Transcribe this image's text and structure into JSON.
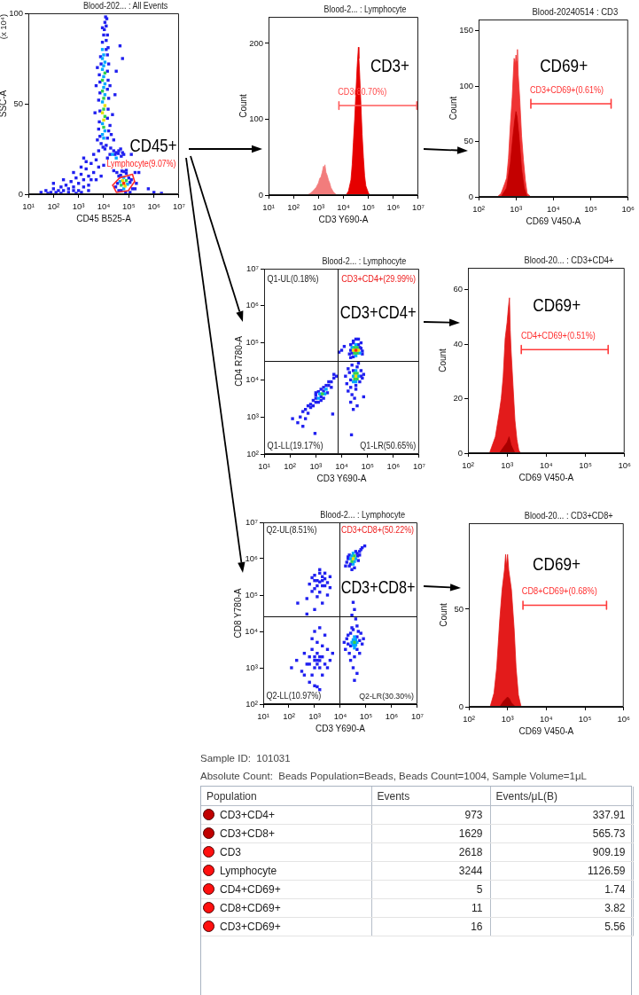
{
  "chart_data": [
    {
      "type": "scatter",
      "title": "Blood-202... : All Events",
      "xlabel": "CD45 B525-A",
      "ylabel": "SSC-A",
      "log": "x",
      "marker": "square",
      "xlim": [
        10,
        10000000
      ],
      "xticks": [
        {
          "value": 10,
          "label": "10¹"
        },
        {
          "value": 100,
          "label": "10²"
        },
        {
          "value": 1000,
          "label": "10³"
        },
        {
          "value": 10000,
          "label": "10⁴"
        },
        {
          "value": 100000,
          "label": "10⁵"
        },
        {
          "value": 1000000,
          "label": "10⁶"
        },
        {
          "value": 10000000,
          "label": "10⁷"
        }
      ],
      "ylim": [
        0,
        100
      ],
      "yticks": [
        0,
        50,
        100
      ],
      "annotations": [
        "(x 10⁴)",
        "CD45+",
        "Lymphocyte(9.07%)"
      ],
      "series": [
        {
          "color": "#2020f0",
          "x": [
            7900,
            12600,
            7100,
            14100,
            6300,
            15800,
            6700,
            14100,
            7100,
            15000,
            6300,
            15800,
            7100,
            14100,
            7100,
            15000,
            6700,
            14100,
            7900,
            15800,
            7500,
            14100,
            12600,
            15000,
            8900,
            12600,
            10000,
            14100,
            10600,
            12600,
            11200,
            13300,
            11900,
            9400,
            11200,
            17800,
            20000,
            22400,
            25100,
            56200,
            31600,
            5000,
            4500,
            5600,
            28200,
            44700,
            17800,
            5600,
            8900,
            6300,
            17800,
            19000,
            25100,
            28200,
            31600,
            37600,
            39800,
            50100,
            56200,
            63100,
            79400,
            25100,
            33500,
            47300,
            53000,
            126000,
            10000,
            14100,
            35500,
            30000,
            40000,
            40000,
            47300,
            50100,
            63100,
            75000,
            79400,
            100000,
            112000,
            112000,
            126000,
            141000,
            178000,
            178000,
            200000,
            251000,
            32,
            50,
            79,
            100,
            126,
            158,
            200,
            251,
            316,
            398,
            501,
            631,
            794,
            1000,
            1260,
            1590,
            2000,
            2510,
            3160,
            3980,
            5010,
            6310,
            398,
            631,
            1000,
            1590,
            2510,
            3160,
            1260,
            2000,
            5010,
            7900,
            630,
            250,
            1600,
            100,
            4000,
            200,
            60,
            2500,
            1300,
            800,
            1000000,
            600000,
            2000000
          ],
          "values": [
            28,
            27,
            32,
            31,
            36,
            35,
            40,
            42,
            46,
            47,
            52,
            53,
            56,
            58,
            62,
            63,
            66,
            68,
            72,
            72,
            76,
            77,
            80,
            81,
            84,
            85,
            88,
            88,
            91,
            93,
            95,
            97,
            98,
            26,
            25,
            38,
            33,
            44,
            30,
            75,
            68,
            60,
            45,
            30,
            55,
            82,
            60,
            70,
            92,
            24,
            22,
            25.5,
            24,
            22,
            23,
            22.5,
            24,
            21,
            23,
            22,
            13.2,
            13,
            12,
            25,
            12.8,
            22,
            16,
            20,
            6,
            4,
            10,
            2,
            10.5,
            2,
            12.5,
            0.8,
            11.5,
            9,
            6.5,
            1,
            8,
            3,
            3,
            12,
            6,
            12,
            1,
            2,
            1,
            3,
            1,
            2,
            4,
            2,
            5,
            3,
            7,
            4,
            9,
            6,
            11,
            8,
            14,
            10,
            17,
            12,
            19,
            15,
            1,
            2,
            2,
            4,
            5,
            8,
            15,
            18,
            8,
            10,
            12,
            8,
            20,
            6,
            22,
            0.5,
            0.5,
            2,
            1,
            0.5,
            1,
            3,
            0.5
          ]
        },
        {
          "color": "#00a8ff",
          "x": [
            10000,
            8900,
            11200,
            8900,
            8900,
            11200,
            10000,
            11200,
            10000,
            8900,
            10000,
            11200,
            8900,
            10000,
            8900,
            22400,
            31600,
            44700,
            89100,
            63100,
            63100
          ],
          "values": [
            31,
            33,
            35,
            39,
            51,
            55,
            59,
            61,
            65,
            69,
            71,
            73,
            75,
            77,
            80,
            22,
            20,
            7,
            5.5,
            3,
            9.3
          ]
        },
        {
          "color": "#30d050",
          "x": [
            10000,
            11200,
            10000,
            10000,
            8900,
            8900,
            11200,
            50100,
            79400
          ],
          "values": [
            37,
            43,
            47,
            53,
            57,
            63,
            67,
            5,
            7.5
          ]
        },
        {
          "color": "#e8e000",
          "x": [
            10000,
            8900,
            11200,
            56200,
            70800
          ],
          "values": [
            41,
            45,
            49,
            7.5,
            4.5
          ]
        },
        {
          "color": "#ff3000",
          "x": [
            63100
          ],
          "values": [
            6
          ]
        },
        {
          "type": "line",
          "marker": "none",
          "color": "#ff2a2a",
          "x": [
            23000,
            43000,
            140000,
            170000
          ],
          "values": [
            5,
            9,
            11,
            7
          ]
        },
        {
          "type": "line",
          "marker": "none",
          "color": "#ff2a2a",
          "x": [
            23000,
            32000,
            95000,
            170000
          ],
          "values": [
            5,
            1,
            2,
            7
          ]
        }
      ]
    },
    {
      "type": "area",
      "title": "Blood-2... : Lymphocyte",
      "xlabel": "CD3 Y690-A",
      "ylabel": "Count",
      "log": "x",
      "xlim": [
        10,
        10000000
      ],
      "xticks": [
        {
          "value": 10,
          "label": "10¹"
        },
        {
          "value": 100,
          "label": "10²"
        },
        {
          "value": 1000,
          "label": "10³"
        },
        {
          "value": 10000,
          "label": "10⁴"
        },
        {
          "value": 100000,
          "label": "10⁵"
        },
        {
          "value": 1000000,
          "label": "10⁶"
        },
        {
          "value": 10000000,
          "label": "10⁷"
        }
      ],
      "ylim": [
        0,
        235
      ],
      "yticks": [
        0,
        100,
        200
      ],
      "annotations": [
        "CD3+",
        "CD3(80.70%)"
      ],
      "series": [
        {
          "color": "#f27c7c",
          "x": [
            360,
            500,
            630,
            800,
            1000,
            1120,
            1260,
            1410,
            1590,
            1700,
            1820,
            2000,
            2240,
            2510,
            2820,
            3160,
            3980,
            5010,
            5620
          ],
          "values": [
            0,
            3,
            6,
            10,
            16,
            22,
            24,
            30,
            38,
            33,
            40,
            30,
            26,
            20,
            16,
            10,
            4,
            1,
            0
          ]
        },
        {
          "color": "#e60000",
          "x": [
            12600,
            15800,
            20000,
            22400,
            25100,
            28200,
            31600,
            35500,
            39800,
            41700,
            44700,
            50100,
            56200,
            63100,
            70800,
            79400,
            100000,
            112000
          ],
          "values": [
            0,
            5,
            20,
            40,
            70,
            100,
            135,
            170,
            195,
            180,
            160,
            120,
            80,
            50,
            25,
            12,
            3,
            0
          ]
        },
        {
          "type": "line",
          "color": "#ff5a5a",
          "x": [
            6600,
            6600,
            6600,
            8700000,
            8700000,
            8700000
          ],
          "values": [
            123,
            113,
            118,
            118,
            123,
            113
          ]
        }
      ]
    },
    {
      "type": "area",
      "title": "Blood-20240514 : CD3",
      "xlabel": "CD69 V450-A",
      "ylabel": "Count",
      "log": "x",
      "xlim": [
        100,
        1000000
      ],
      "xticks": [
        {
          "value": 100,
          "label": "10²"
        },
        {
          "value": 1000,
          "label": "10³"
        },
        {
          "value": 10000,
          "label": "10⁴"
        },
        {
          "value": 100000,
          "label": "10⁵"
        },
        {
          "value": 1000000,
          "label": "10⁶"
        }
      ],
      "ylim": [
        0,
        160
      ],
      "yticks": [
        0,
        50,
        100,
        150
      ],
      "annotations": [
        "CD69+",
        "CD3+CD69+(0.61%)"
      ],
      "series": [
        {
          "color": "#ef3434",
          "x": [
            316,
            398,
            501,
            562,
            631,
            708,
            794,
            891,
            955,
            1000,
            1047,
            1096,
            1148,
            1259,
            1413,
            1585,
            1778,
            1995,
            2512
          ],
          "values": [
            0,
            3,
            12,
            17,
            35,
            65,
            90,
            125,
            120,
            128,
            122,
            133,
            110,
            89,
            55,
            33,
            15,
            3,
            0
          ]
        },
        {
          "color": "#c40000",
          "x": [
            398,
            562,
            708,
            832,
            933,
            1000,
            1072,
            1202,
            1413,
            1660,
            1995
          ],
          "values": [
            0,
            8,
            30,
            55,
            70,
            77,
            72,
            55,
            25,
            8,
            0
          ]
        },
        {
          "type": "line",
          "color": "#ff3a3a",
          "x": [
            2500,
            2500,
            2500,
            350000,
            350000,
            350000
          ],
          "values": [
            88,
            80,
            84,
            84,
            88,
            80
          ]
        }
      ]
    },
    {
      "type": "scatter",
      "title": "Blood-2... : Lymphocyte",
      "xlabel": "CD3 Y690-A",
      "ylabel": "CD4 R780-A",
      "log": "xy",
      "marker": "square",
      "xlim": [
        10,
        10000000
      ],
      "xticks": [
        {
          "value": 10,
          "label": "10¹"
        },
        {
          "value": 100,
          "label": "10²"
        },
        {
          "value": 1000,
          "label": "10³"
        },
        {
          "value": 10000,
          "label": "10⁴"
        },
        {
          "value": 100000,
          "label": "10⁵"
        },
        {
          "value": 1000000,
          "label": "10⁶"
        },
        {
          "value": 10000000,
          "label": "10⁷"
        }
      ],
      "ylim": [
        100,
        10000000
      ],
      "yticks": [
        {
          "value": 100,
          "label": "10²"
        },
        {
          "value": 1000,
          "label": "10³"
        },
        {
          "value": 10000,
          "label": "10⁴"
        },
        {
          "value": 100000,
          "label": "10⁵"
        },
        {
          "value": 1000000,
          "label": "10⁶"
        },
        {
          "value": 10000000,
          "label": "10⁷"
        }
      ],
      "ref_lines": [
        {
          "axis": "x",
          "value": 7100
        },
        {
          "axis": "y",
          "value": 32000
        }
      ],
      "annotations": [
        "Q1-UL(0.18%)",
        "CD3+CD4+(29.99%)",
        "CD3+CD4+",
        "Q1-LL(19.17%)",
        "Q1-LR(50.65%)"
      ],
      "series": [
        {
          "color": "#2020f0",
          "x": [
            20000,
            22400,
            22400,
            25100,
            28200,
            28200,
            50100,
            44700,
            63100,
            56200,
            63100,
            28200,
            44700,
            22400,
            56200,
            35500,
            10000,
            12600,
            7900,
            14100,
            15800,
            17800,
            20000,
            22400,
            25100,
            22400,
            28200,
            35500,
            39800,
            56200,
            50100,
            56200,
            63100,
            70800,
            17800,
            25100,
            31600,
            22400,
            35500,
            28200,
            39800,
            44700,
            24000,
            4500,
            70800,
            250,
            316,
            398,
            501,
            631,
            794,
            1000,
            1000,
            1590,
            2000,
            2510,
            3160,
            3980,
            5010,
            6310,
            794,
            1000,
            1260,
            1590,
            2000,
            2820,
            3160,
            2000,
            1260,
            631,
            501,
            398,
            3980,
            5010,
            200,
            126,
            1590,
            930,
            316,
            1000
          ],
          "values": [
            50000,
            63000,
            89000,
            53000,
            100000,
            42000,
            75000,
            89000,
            60000,
            71000,
            50000,
            112000,
            126000,
            40000,
            100000,
            126000,
            63000,
            80000,
            56000,
            12600,
            7900,
            20000,
            15800,
            6300,
            25100,
            10000,
            17800,
            7100,
            22400,
            12600,
            8900,
            17800,
            11200,
            14100,
            5000,
            4000,
            3200,
            2500,
            5600,
            1600,
            2000,
            28200,
            330,
            1200,
            3500,
            1000,
            1400,
            1600,
            2000,
            2200,
            2800,
            3200,
            3900,
            5600,
            5000,
            7100,
            7100,
            8900,
            11200,
            12600,
            2000,
            2500,
            4800,
            3500,
            3200,
            4500,
            8900,
            6300,
            2500,
            1800,
            1260,
            900,
            6300,
            14100,
            700,
            900,
            2800,
            360,
            560,
            4500
          ]
        },
        {
          "color": "#00a8ff",
          "x": [
            35500,
            35500,
            25100,
            50100,
            28200,
            44700,
            35500,
            35500,
            28200,
            1260,
            2510,
            1410,
            2240
          ],
          "values": [
            89000,
            45000,
            75000,
            53000,
            12600,
            12600,
            17800,
            8900,
            8900,
            3200,
            5600,
            4200,
            4200
          ]
        },
        {
          "color": "#30d050",
          "x": [
            31600,
            39800,
            31600,
            39800,
            31600,
            39800,
            31600,
            39800,
            1780
          ],
          "values": [
            75000,
            75000,
            53000,
            53000,
            15000,
            15000,
            10600,
            10600,
            4200
          ]
        },
        {
          "color": "#e8e000",
          "x": [
            28200,
            44700,
            35500
          ],
          "values": [
            63000,
            63000,
            12600
          ]
        },
        {
          "color": "#ff3000",
          "x": [
            35500
          ],
          "values": [
            63000
          ]
        }
      ]
    },
    {
      "type": "area",
      "title": "Blood-20... : CD3+CD4+",
      "xlabel": "CD69 V450-A",
      "ylabel": "Count",
      "log": "x",
      "xlim": [
        100,
        1000000
      ],
      "xticks": [
        {
          "value": 100,
          "label": "10²"
        },
        {
          "value": 1000,
          "label": "10³"
        },
        {
          "value": 10000,
          "label": "10⁴"
        },
        {
          "value": 100000,
          "label": "10⁵"
        },
        {
          "value": 1000000,
          "label": "10⁶"
        }
      ],
      "ylim": [
        0,
        68
      ],
      "yticks": [
        0,
        20,
        40,
        60
      ],
      "annotations": [
        "CD69+",
        "CD4+CD69+(0.51%)"
      ],
      "series": [
        {
          "color": "#e31b1b",
          "x": [
            355,
            398,
            501,
            631,
            708,
            794,
            891,
            1000,
            1072,
            1148,
            1202,
            1259,
            1413,
            1585,
            1778,
            1995,
            2239
          ],
          "values": [
            0,
            2,
            6,
            15,
            20,
            28,
            42,
            48,
            53,
            57,
            45,
            38,
            25,
            12,
            5,
            1,
            0
          ]
        },
        {
          "color": "#a80000",
          "x": [
            631,
            794,
            1000,
            1122,
            1259,
            1585
          ],
          "values": [
            0,
            2,
            4,
            6,
            3,
            0
          ]
        },
        {
          "type": "line",
          "color": "#ff3a3a",
          "x": [
            2300,
            2300,
            2300,
            380000,
            380000,
            380000
          ],
          "values": [
            39.5,
            36.5,
            38,
            38,
            39.5,
            36.5
          ]
        }
      ]
    },
    {
      "type": "scatter",
      "title": "Blood-2... : Lymphocyte",
      "xlabel": "CD3 Y690-A",
      "ylabel": "CD8 Y780-A",
      "log": "xy",
      "marker": "square",
      "xlim": [
        10,
        10000000
      ],
      "xticks": [
        {
          "value": 10,
          "label": "10¹"
        },
        {
          "value": 100,
          "label": "10²"
        },
        {
          "value": 1000,
          "label": "10³"
        },
        {
          "value": 10000,
          "label": "10⁴"
        },
        {
          "value": 100000,
          "label": "10⁵"
        },
        {
          "value": 1000000,
          "label": "10⁶"
        },
        {
          "value": 10000000,
          "label": "10⁷"
        }
      ],
      "ylim": [
        100,
        10000000
      ],
      "yticks": [
        {
          "value": 100,
          "label": "10²"
        },
        {
          "value": 1000,
          "label": "10³"
        },
        {
          "value": 10000,
          "label": "10⁴"
        },
        {
          "value": 100000,
          "label": "10⁵"
        },
        {
          "value": 1000000,
          "label": "10⁶"
        },
        {
          "value": 10000000,
          "label": "10⁷"
        }
      ],
      "ref_lines": [
        {
          "axis": "x",
          "value": 9100
        },
        {
          "axis": "y",
          "value": 26000
        }
      ],
      "annotations": [
        "Q2-UL(8.51%)",
        "CD3+CD8+(50.22%)",
        "CD3+CD8+",
        "Q2-LL(10.97%)",
        "Q2-LR(30.30%)"
      ],
      "series": [
        {
          "color": "#2020f0",
          "x": [
            631,
            794,
            1000,
            1260,
            1580,
            2000,
            2510,
            3160,
            3980,
            1000,
            1580,
            2000,
            1260,
            2510,
            794,
            1580,
            3160,
            220,
            500,
            1260,
            2000,
            1580,
            2510,
            1000,
            3980,
            1000,
            2000,
            500,
            17800,
            20000,
            22400,
            22400,
            25100,
            39800,
            35500,
            47300,
            50100,
            56200,
            56200,
            63100,
            70800,
            89100,
            20000,
            28200,
            44700,
            16000,
            31600,
            35500,
            28200,
            39800,
            14100,
            15800,
            17800,
            20000,
            22400,
            25100,
            25100,
            31600,
            35500,
            44700,
            44700,
            50100,
            56200,
            63100,
            70800,
            79400,
            25100,
            31600,
            44700,
            35500,
            20000,
            56200,
            28200,
            44700,
            126,
            200,
            316,
            398,
            501,
            631,
            794,
            1000,
            1260,
            1580,
            2000,
            2510,
            3160,
            3980,
            5010,
            794,
            1000,
            1260,
            1580,
            2000,
            631,
            1000,
            1580,
            1260,
            794,
            2510,
            1000,
            1580,
            398,
            2000,
            3160,
            1260,
            1000,
            1580,
            631,
            1260
          ],
          "values": [
            200000,
            300000,
            150000,
            250000,
            400000,
            180000,
            280000,
            220000,
            160000,
            350000,
            120000,
            320000,
            180000,
            400000,
            126000,
            500000,
            100000,
            60000,
            80000,
            90000,
            250000,
            230000,
            180000,
            250000,
            320000,
            40000,
            60000,
            30000,
            800000,
            1120000,
            630000,
            1260000,
            710000,
            1580000,
            560000,
            1190000,
            890000,
            1260000,
            1580000,
            1780000,
            2000000,
            2240000,
            1000000,
            500000,
            1400000,
            630000,
            63000,
            40000,
            28000,
            22000,
            5000,
            3200,
            6300,
            7900,
            2500,
            8900,
            4000,
            11200,
            2000,
            7100,
            3200,
            10000,
            5600,
            8900,
            4500,
            6300,
            1600,
            1000,
            700,
            450,
            4500,
            2500,
            12600,
            14100,
            1000,
            1600,
            800,
            2500,
            1260,
            2000,
            630,
            1600,
            2500,
            1000,
            2000,
            1260,
            3200,
            1600,
            2500,
            3200,
            1000,
            1600,
            2000,
            4000,
            400,
            320,
            250,
            5000,
            6300,
            7900,
            10000,
            12600,
            630,
            630,
            1000,
            1260,
            2000,
            1580,
            1260,
            300
          ]
        },
        {
          "color": "#00a8ff",
          "x": [
            28200,
            35500,
            25100,
            39800,
            31600,
            31600,
            31600,
            39800,
            31600,
            39800,
            28200,
            44700,
            35500,
            35500
          ],
          "values": [
            1190000,
            840000,
            1000000,
            1000000,
            1410000,
            710000,
            5900,
            5900,
            4200,
            4200,
            5000,
            5000,
            7100,
            3500
          ]
        },
        {
          "color": "#30d050",
          "x": [
            35500,
            28200,
            35500
          ],
          "values": [
            1190000,
            840000,
            5000
          ]
        },
        {
          "color": "#e8e000",
          "x": [
            31600
          ],
          "values": [
            1000000
          ]
        }
      ]
    },
    {
      "type": "area",
      "title": "Blood-20... : CD3+CD8+",
      "xlabel": "CD69 V450-A",
      "ylabel": "Count",
      "log": "x",
      "xlim": [
        100,
        1000000
      ],
      "xticks": [
        {
          "value": 100,
          "label": "10²"
        },
        {
          "value": 1000,
          "label": "10³"
        },
        {
          "value": 10000,
          "label": "10⁴"
        },
        {
          "value": 100000,
          "label": "10⁵"
        },
        {
          "value": 1000000,
          "label": "10⁶"
        }
      ],
      "ylim": [
        0,
        94
      ],
      "yticks": [
        0,
        50
      ],
      "annotations": [
        "CD69+",
        "CD8+CD69+(0.68%)"
      ],
      "series": [
        {
          "color": "#e31b1b",
          "x": [
            355,
            447,
            525,
            631,
            724,
            832,
            891,
            933,
            1000,
            1072,
            1259,
            1479,
            1660,
            1905,
            2239
          ],
          "values": [
            0,
            7,
            20,
            45,
            60,
            70,
            78,
            72,
            78,
            70,
            60,
            40,
            20,
            6,
            0
          ]
        },
        {
          "color": "#a80000",
          "x": [
            631,
            794,
            1000,
            1122,
            1259,
            1585
          ],
          "values": [
            0,
            3,
            5,
            4,
            2,
            0
          ]
        },
        {
          "type": "line",
          "color": "#ff3a3a",
          "x": [
            2500,
            2500,
            2500,
            360000,
            360000,
            360000
          ],
          "values": [
            54,
            50,
            52,
            52,
            54,
            50
          ]
        }
      ]
    },
    {
      "type": "other",
      "legend_title": "Population",
      "categories": [
        "CD3+CD4+",
        "CD3+CD8+",
        "CD3",
        "Lymphocyte",
        "CD4+CD69+",
        "CD8+CD69+",
        "CD3+CD69+"
      ],
      "colors": [
        "#c00000",
        "#c00000",
        "#ff1010",
        "#ff1010",
        "#ff1010",
        "#ff1010",
        "#ff1010"
      ],
      "series": [
        {
          "name": "Events",
          "values": [
            973,
            1629,
            2618,
            3244,
            5,
            11,
            16
          ]
        },
        {
          "name": "Events/μL(B)",
          "values": [
            337.91,
            565.73,
            909.19,
            1126.59,
            1.74,
            3.82,
            5.56
          ]
        }
      ],
      "data_labels": true,
      "annotations": [
        "Sample ID:  101031",
        "Absolute Count:  Beads Population=Beads, Beads Count=1004, Sample Volume=1μL"
      ]
    }
  ]
}
